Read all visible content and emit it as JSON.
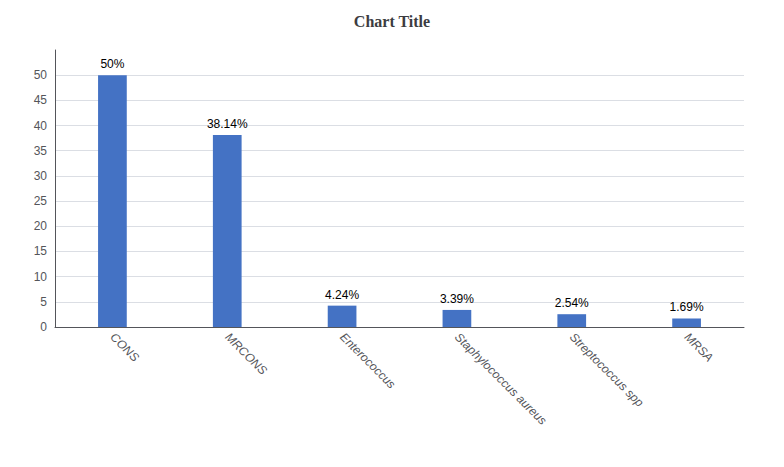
{
  "chart_data": {
    "type": "bar",
    "title": "Chart Title",
    "categories": [
      "CONS",
      "MRCONS",
      "Enterococcus",
      "Staphylococcus aureus",
      "Streptococcus spp",
      "MRSA"
    ],
    "values": [
      50.0,
      38.14,
      4.24,
      3.39,
      2.54,
      1.69
    ],
    "value_labels": [
      "50%",
      "38.14%",
      "4.24%",
      "3.39%",
      "2.54%",
      "1.69%"
    ],
    "color": "#4472C4",
    "ylim": [
      0,
      55
    ],
    "yticks": [
      0,
      5,
      10,
      15,
      20,
      25,
      30,
      35,
      40,
      45,
      50
    ],
    "grid": true,
    "data_labels": true
  }
}
